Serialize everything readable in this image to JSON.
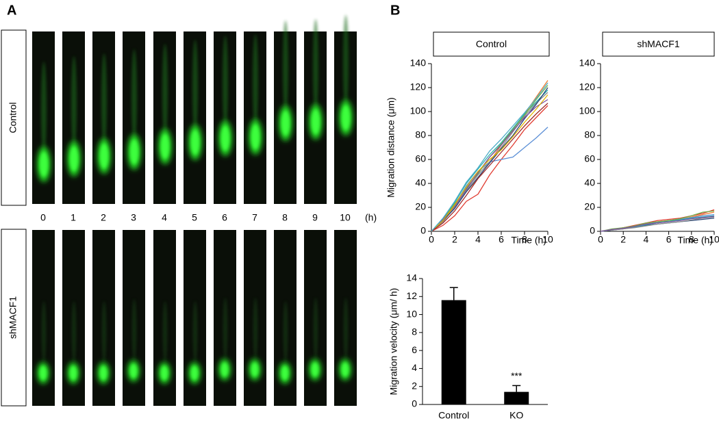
{
  "figure": {
    "panels": [
      "A",
      "B"
    ],
    "row_labels": [
      "Control",
      "shMACF1"
    ],
    "time_labels": [
      "0",
      "1",
      "2",
      "3",
      "4",
      "5",
      "6",
      "7",
      "8",
      "9",
      "10"
    ],
    "time_unit": "(h)"
  },
  "chart_data": [
    {
      "type": "line",
      "title": "Control",
      "xlabel": "Time (h)",
      "ylabel": "Migration distance (μm)",
      "x": [
        0,
        1,
        2,
        3,
        4,
        5,
        6,
        7,
        8,
        9,
        10
      ],
      "xlim": [
        0,
        10
      ],
      "xticks": [
        0,
        2,
        4,
        6,
        8,
        10
      ],
      "ylim": [
        0,
        140
      ],
      "yticks": [
        0,
        20,
        40,
        60,
        80,
        100,
        120,
        140
      ],
      "series": [
        {
          "color": "#ed7d31",
          "values": [
            0,
            9,
            20,
            33,
            44,
            58,
            72,
            85,
            98,
            112,
            126
          ]
        },
        {
          "color": "#e03c31",
          "values": [
            0,
            5,
            13,
            25,
            31,
            47,
            60,
            72,
            85,
            95,
            105
          ]
        },
        {
          "color": "#5b8fd6",
          "values": [
            0,
            10,
            22,
            38,
            50,
            58,
            60,
            62,
            70,
            78,
            87
          ]
        },
        {
          "color": "#2ab0b0",
          "values": [
            0,
            11,
            24,
            40,
            52,
            64,
            74,
            86,
            98,
            108,
            118
          ]
        },
        {
          "color": "#70ad47",
          "values": [
            0,
            10,
            23,
            36,
            48,
            62,
            73,
            85,
            97,
            110,
            122
          ]
        },
        {
          "color": "#8c8c8c",
          "values": [
            0,
            8,
            20,
            34,
            47,
            58,
            70,
            83,
            96,
            107,
            116
          ]
        },
        {
          "color": "#264478",
          "values": [
            0,
            9,
            19,
            33,
            45,
            57,
            69,
            80,
            94,
            106,
            120
          ]
        },
        {
          "color": "#7b4fa0",
          "values": [
            0,
            10,
            21,
            35,
            49,
            62,
            72,
            84,
            95,
            104,
            110
          ]
        },
        {
          "color": "#e0b400",
          "values": [
            0,
            9,
            22,
            37,
            50,
            60,
            68,
            79,
            91,
            102,
            114
          ]
        },
        {
          "color": "#9e2a2b",
          "values": [
            0,
            7,
            17,
            30,
            44,
            55,
            66,
            77,
            88,
            98,
            107
          ]
        },
        {
          "color": "#4bacc6",
          "values": [
            0,
            11,
            25,
            41,
            53,
            67,
            77,
            88,
            99,
            111,
            124
          ]
        }
      ]
    },
    {
      "type": "line",
      "title": "shMACF1",
      "xlabel": "Time (h)",
      "x": [
        0,
        1,
        2,
        3,
        4,
        5,
        6,
        7,
        8,
        9,
        10
      ],
      "xlim": [
        0,
        10
      ],
      "xticks": [
        0,
        2,
        4,
        6,
        8,
        10
      ],
      "ylim": [
        0,
        140
      ],
      "yticks": [
        0,
        20,
        40,
        60,
        80,
        100,
        120,
        140
      ],
      "series": [
        {
          "color": "#264478",
          "values": [
            0,
            1,
            2,
            3.5,
            5,
            6,
            7,
            8,
            9,
            10,
            11
          ]
        },
        {
          "color": "#ed7d31",
          "values": [
            0,
            1.5,
            3,
            4.5,
            6.5,
            8,
            9,
            10,
            12,
            14,
            16
          ]
        },
        {
          "color": "#5b8fd6",
          "values": [
            0,
            1,
            2.5,
            4,
            6,
            7.5,
            9,
            10,
            11.5,
            13,
            14
          ]
        },
        {
          "color": "#e03c31",
          "values": [
            0,
            1.5,
            3,
            5,
            7,
            9,
            10,
            11,
            13,
            15,
            18
          ]
        },
        {
          "color": "#2ab0b0",
          "values": [
            0,
            1,
            2.5,
            3.5,
            5.5,
            7,
            8.5,
            9.5,
            11,
            12,
            13
          ]
        },
        {
          "color": "#70ad47",
          "values": [
            0,
            2,
            3,
            4.5,
            7,
            8,
            9,
            10.5,
            13,
            16,
            17
          ]
        },
        {
          "color": "#8c8c8c",
          "values": [
            0,
            1,
            2,
            3,
            4.5,
            6,
            7,
            8,
            9.5,
            11,
            12
          ]
        },
        {
          "color": "#7b4fa0",
          "values": [
            0,
            1.5,
            2.5,
            4,
            6,
            7,
            8,
            9,
            10.5,
            11.5,
            12.5
          ]
        }
      ]
    },
    {
      "type": "bar",
      "ylabel": "Migration velocity (μm/ h)",
      "categories": [
        "Control",
        "KO"
      ],
      "values": [
        11.6,
        1.4
      ],
      "errors": [
        1.4,
        0.7
      ],
      "color": "#000000",
      "ylim": [
        0,
        14
      ],
      "yticks": [
        0,
        2,
        4,
        6,
        8,
        10,
        12,
        14
      ],
      "annotations": [
        {
          "text": "***",
          "category": "KO"
        }
      ]
    }
  ]
}
